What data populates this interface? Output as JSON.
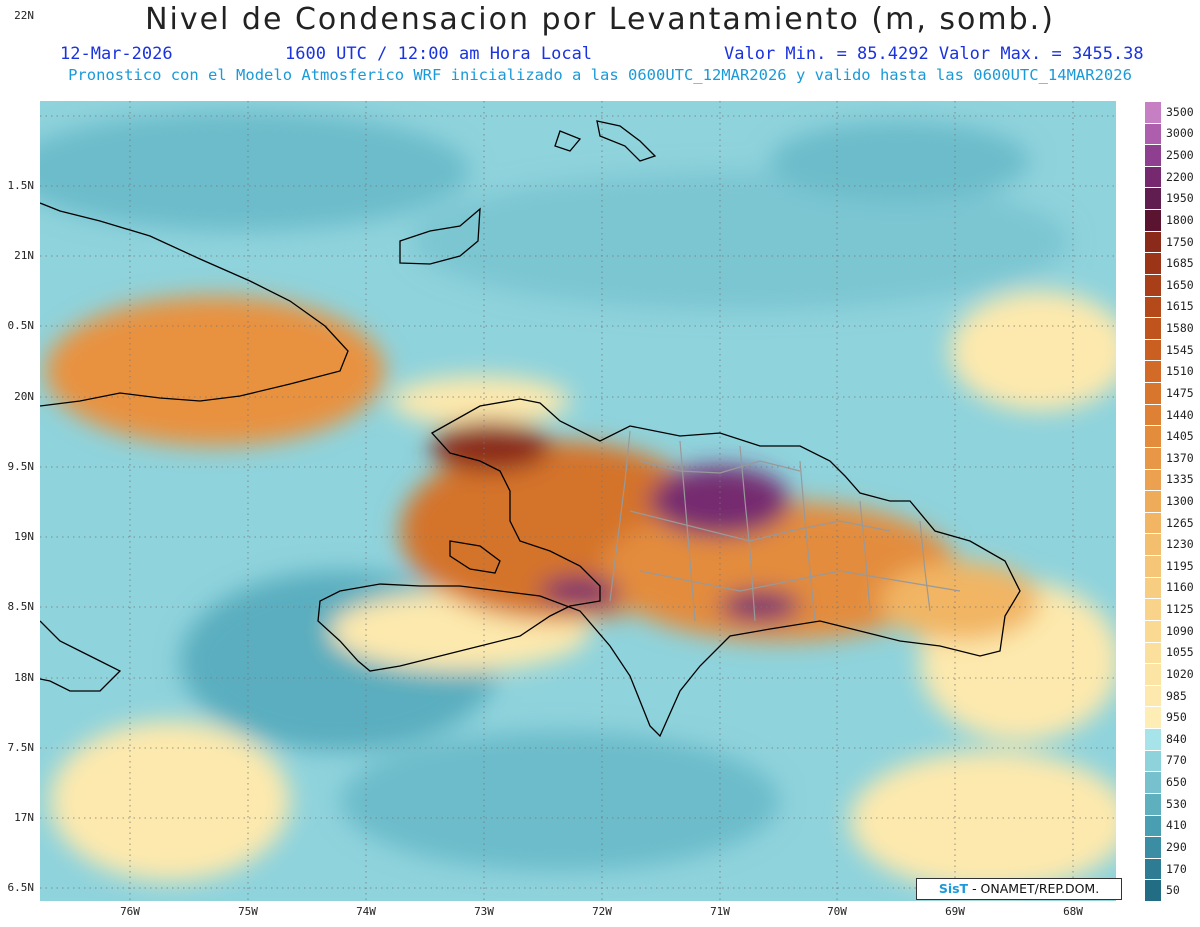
{
  "title": "Nivel de Condensacion por Levantamiento (m, somb.)",
  "date": "12-Mar-2026",
  "time": "1600 UTC / 12:00 am Hora Local",
  "minmax": "Valor Min. = 85.4292  Valor Max. = 3455.38",
  "subtitle": "Pronostico con el Modelo Atmosferico WRF inicializado a las 0600UTC_12MAR2026 y valido hasta las  0600UTC_14MAR2026",
  "lat_labels": [
    "22N",
    "1.5N",
    "21N",
    "0.5N",
    "20N",
    "9.5N",
    "19N",
    "8.5N",
    "18N",
    "7.5N",
    "17N",
    "6.5N"
  ],
  "lon_labels": [
    "76W",
    "75W",
    "74W",
    "73W",
    "72W",
    "71W",
    "70W",
    "69W",
    "68W"
  ],
  "colorbar": {
    "labels": [
      "3500",
      "3000",
      "2500",
      "2200",
      "1950",
      "1800",
      "1750",
      "1685",
      "1650",
      "1615",
      "1580",
      "1545",
      "1510",
      "1475",
      "1440",
      "1405",
      "1370",
      "1335",
      "1300",
      "1265",
      "1230",
      "1195",
      "1160",
      "1125",
      "1090",
      "1055",
      "1020",
      "985",
      "950",
      "840",
      "770",
      "650",
      "530",
      "410",
      "290",
      "170",
      "50"
    ],
    "colors": [
      "#c77fc4",
      "#ad5fae",
      "#8e3f8f",
      "#76296f",
      "#5f1d50",
      "#5a1430",
      "#8a2a1b",
      "#9c3518",
      "#a83f18",
      "#b44a1a",
      "#bf551d",
      "#c96022",
      "#d16b27",
      "#d8762d",
      "#de8134",
      "#e38c3c",
      "#e79745",
      "#eba14f",
      "#eeab59",
      "#f1b563",
      "#f3be6d",
      "#f5c677",
      "#f7cd81",
      "#f9d38a",
      "#fad993",
      "#fbdf9c",
      "#fce4a4",
      "#fde9ad",
      "#feeeb6",
      "#a6e4ea",
      "#8ed3dc",
      "#76c1cd",
      "#5fb0bf",
      "#4a9eb1",
      "#3a8da2",
      "#2e7c93",
      "#226c84"
    ]
  },
  "credit_logo": "SisT",
  "credit_text": "- ONAMET/REP.DOM."
}
